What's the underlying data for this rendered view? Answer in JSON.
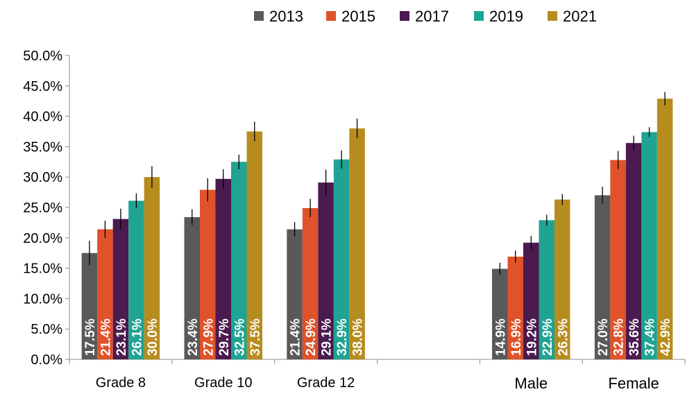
{
  "chart_data": {
    "type": "bar",
    "categories": [
      "Grade 8",
      "Grade 10",
      "Grade 12",
      "",
      "Male",
      "Female"
    ],
    "series": [
      {
        "name": "2013",
        "color": "#595959",
        "values": [
          17.5,
          23.4,
          21.4,
          null,
          14.9,
          27.0
        ],
        "error": [
          2.0,
          1.3,
          1.2,
          null,
          1.0,
          1.4
        ],
        "labels": [
          "17.5%",
          "23.4%",
          "21.4%",
          "",
          "14.9%",
          "27.0%"
        ]
      },
      {
        "name": "2015",
        "color": "#E05229",
        "values": [
          21.4,
          27.9,
          24.9,
          null,
          16.9,
          32.8
        ],
        "error": [
          1.4,
          1.9,
          1.5,
          null,
          1.0,
          1.5
        ],
        "labels": [
          "21.4%",
          "27.9%",
          "24.9%",
          "",
          "16.9%",
          "32.8%"
        ]
      },
      {
        "name": "2017",
        "color": "#4B1A4F",
        "values": [
          23.1,
          29.7,
          29.1,
          null,
          19.2,
          35.6
        ],
        "error": [
          1.7,
          1.6,
          2.1,
          null,
          1.1,
          1.2
        ],
        "labels": [
          "23.1%",
          "29.7%",
          "29.1%",
          "",
          "19.2%",
          "35.6%"
        ]
      },
      {
        "name": "2019",
        "color": "#1FA392",
        "values": [
          26.1,
          32.5,
          32.9,
          null,
          22.9,
          37.4
        ],
        "error": [
          1.2,
          1.2,
          1.5,
          null,
          0.9,
          0.8
        ],
        "labels": [
          "26.1%",
          "32.5%",
          "32.9%",
          "",
          "22.9%",
          "37.4%"
        ]
      },
      {
        "name": "2021",
        "color": "#B78C1F",
        "values": [
          30.0,
          37.5,
          38.0,
          null,
          26.3,
          42.9
        ],
        "error": [
          1.8,
          1.6,
          1.6,
          null,
          0.9,
          1.1
        ],
        "labels": [
          "30.0%",
          "37.5%",
          "38.0%",
          "",
          "26.3%",
          "42.9%"
        ]
      }
    ],
    "yticks": [
      "0.0%",
      "5.0%",
      "10.0%",
      "15.0%",
      "20.0%",
      "25.0%",
      "30.0%",
      "35.0%",
      "40.0%",
      "45.0%",
      "50.0%"
    ],
    "ylim": [
      0,
      50
    ],
    "grid": false,
    "legend_position": "top-center"
  }
}
